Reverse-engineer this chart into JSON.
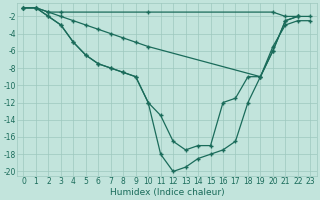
{
  "lines": [
    {
      "x": [
        0,
        1,
        2,
        3,
        10,
        20,
        21,
        22,
        23
      ],
      "y": [
        -1,
        -1,
        -1.5,
        -1.5,
        -1.5,
        -1.5,
        -2,
        -2,
        -2
      ]
    },
    {
      "x": [
        0,
        1,
        2,
        3,
        4,
        5,
        6,
        7,
        8,
        9,
        10,
        19,
        20,
        21,
        22,
        23
      ],
      "y": [
        -1,
        -1,
        -1.5,
        -2,
        -2.5,
        -3,
        -3.5,
        -4,
        -4.5,
        -5,
        -5.5,
        -9,
        -5.5,
        -3,
        -2.5,
        -2.5
      ]
    },
    {
      "x": [
        0,
        1,
        2,
        3,
        4,
        5,
        6,
        7,
        8,
        9,
        10,
        11,
        12,
        13,
        14,
        15,
        16,
        17,
        18,
        19,
        20,
        21,
        22
      ],
      "y": [
        -1,
        -1,
        -2,
        -3,
        -5,
        -6.5,
        -7.5,
        -8,
        -8.5,
        -9,
        -12,
        -13.5,
        -16.5,
        -17.5,
        -17,
        -17,
        -12,
        -11.5,
        -9,
        -9,
        -6,
        -2.5,
        -2
      ]
    },
    {
      "x": [
        0,
        1,
        2,
        3,
        4,
        5,
        6,
        7,
        8,
        9,
        10,
        11,
        12,
        13,
        14,
        15,
        16,
        17,
        18,
        19,
        20,
        21,
        22
      ],
      "y": [
        -1,
        -1,
        -2,
        -3,
        -5,
        -6.5,
        -7.5,
        -8,
        -8.5,
        -9,
        -12,
        -18,
        -20,
        -19.5,
        -18.5,
        -18,
        -17.5,
        -16.5,
        -12,
        -9,
        -6,
        -2.5,
        -2
      ]
    }
  ],
  "bg_color": "#c2e4dc",
  "grid_color": "#9dc8be",
  "line_color": "#1a6b5a",
  "xlabel": "Humidex (Indice chaleur)",
  "xlim": [
    -0.5,
    23.5
  ],
  "ylim": [
    -20.5,
    -0.5
  ],
  "xticks": [
    0,
    1,
    2,
    3,
    4,
    5,
    6,
    7,
    8,
    9,
    10,
    11,
    12,
    13,
    14,
    15,
    16,
    17,
    18,
    19,
    20,
    21,
    22,
    23
  ],
  "yticks": [
    -20,
    -18,
    -16,
    -14,
    -12,
    -10,
    -8,
    -6,
    -4,
    -2
  ],
  "marker": "+",
  "markersize": 3.5,
  "markeredgewidth": 1.0,
  "linewidth": 0.9,
  "xlabel_fontsize": 6.5,
  "tick_fontsize": 5.5
}
